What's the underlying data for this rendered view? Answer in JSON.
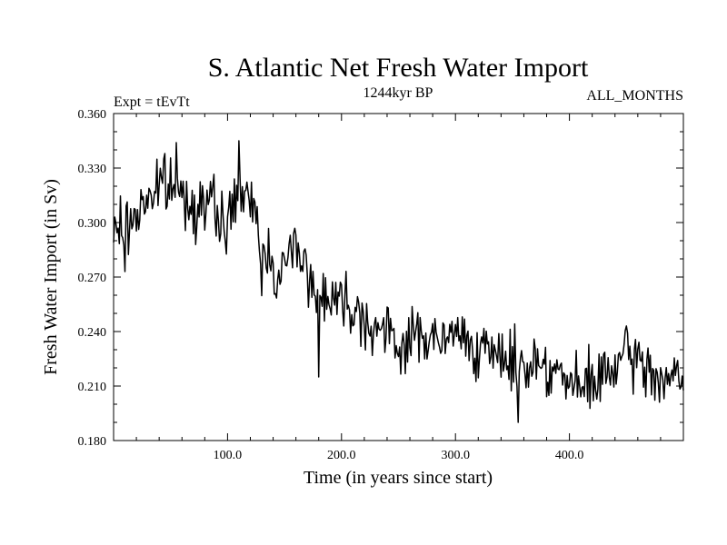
{
  "chart_data": {
    "type": "line",
    "title": "S. Atlantic Net Fresh Water Import",
    "subtitle_left": "Expt = tEvTt",
    "subtitle_center": "1244kyr BP",
    "subtitle_right": "ALL_MONTHS",
    "xlabel": "Time (in years since start)",
    "ylabel": "Fresh Water Import (in Sv)",
    "xlim": [
      0,
      500
    ],
    "ylim": [
      0.18,
      0.36
    ],
    "x_ticks": [
      100,
      200,
      300,
      400
    ],
    "x_tick_labels": [
      "100.0",
      "200.0",
      "300.0",
      "400.0"
    ],
    "y_ticks": [
      0.18,
      0.21,
      0.24,
      0.27,
      0.3,
      0.33,
      0.36
    ],
    "y_tick_labels": [
      "0.180",
      "0.210",
      "0.240",
      "0.270",
      "0.300",
      "0.330",
      "0.360"
    ],
    "grid": false,
    "series": [
      {
        "name": "Net Fresh Water Import",
        "anchors_x": [
          0,
          5,
          10,
          20,
          30,
          40,
          50,
          60,
          70,
          80,
          90,
          100,
          110,
          120,
          125,
          130,
          135,
          140,
          145,
          150,
          160,
          165,
          170,
          175,
          178,
          180,
          190,
          200,
          210,
          220,
          230,
          240,
          250,
          260,
          270,
          280,
          290,
          300,
          310,
          320,
          330,
          340,
          350,
          360,
          370,
          380,
          390,
          400,
          410,
          420,
          430,
          440,
          450,
          460,
          470,
          480,
          490,
          500
        ],
        "anchors_y": [
          0.29,
          0.3,
          0.295,
          0.305,
          0.315,
          0.318,
          0.32,
          0.315,
          0.31,
          0.312,
          0.305,
          0.298,
          0.32,
          0.305,
          0.31,
          0.275,
          0.285,
          0.28,
          0.268,
          0.275,
          0.29,
          0.285,
          0.272,
          0.262,
          0.255,
          0.265,
          0.26,
          0.258,
          0.255,
          0.248,
          0.242,
          0.238,
          0.232,
          0.235,
          0.24,
          0.236,
          0.232,
          0.24,
          0.236,
          0.232,
          0.224,
          0.228,
          0.224,
          0.22,
          0.225,
          0.222,
          0.218,
          0.21,
          0.208,
          0.212,
          0.215,
          0.22,
          0.226,
          0.224,
          0.218,
          0.215,
          0.214,
          0.212
        ],
        "noise_amplitude": 0.016,
        "spikes_x": [
          10,
          45,
          55,
          110,
          180,
          355
        ],
        "spikes_y": [
          0.273,
          0.338,
          0.344,
          0.345,
          0.215,
          0.19
        ],
        "color": "#000000"
      }
    ]
  }
}
